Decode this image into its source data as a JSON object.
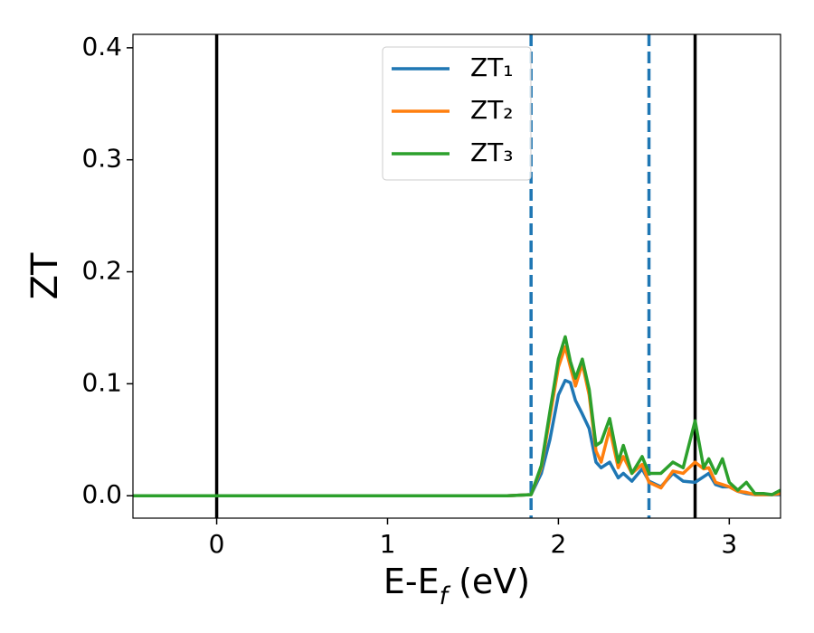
{
  "chart_data": {
    "type": "line",
    "x_label": "E-E_f (eV)",
    "y_label": "ZT",
    "x": [
      -0.49,
      0,
      1,
      1.7,
      1.84,
      1.9,
      1.95,
      2.0,
      2.04,
      2.07,
      2.1,
      2.14,
      2.18,
      2.22,
      2.25,
      2.3,
      2.35,
      2.38,
      2.43,
      2.49,
      2.53,
      2.6,
      2.67,
      2.73,
      2.8,
      2.85,
      2.88,
      2.92,
      2.96,
      3.0,
      3.05,
      3.1,
      3.15,
      3.2,
      3.25,
      3.3
    ],
    "series": [
      {
        "name": "ZT₁",
        "color": "#1f77b4",
        "values": [
          0,
          0,
          0,
          0,
          0.001,
          0.02,
          0.05,
          0.09,
          0.103,
          0.101,
          0.085,
          0.073,
          0.06,
          0.03,
          0.025,
          0.03,
          0.016,
          0.02,
          0.013,
          0.024,
          0.013,
          0.008,
          0.02,
          0.013,
          0.012,
          0.017,
          0.02,
          0.01,
          0.008,
          0.008,
          0.004,
          0.002,
          0.001,
          0.001,
          0.001,
          0.001
        ]
      },
      {
        "name": "ZT₂",
        "color": "#ff7f0e",
        "values": [
          0,
          0,
          0,
          0,
          0.001,
          0.025,
          0.07,
          0.115,
          0.133,
          0.115,
          0.098,
          0.118,
          0.09,
          0.04,
          0.03,
          0.06,
          0.025,
          0.035,
          0.02,
          0.028,
          0.012,
          0.007,
          0.022,
          0.02,
          0.03,
          0.024,
          0.025,
          0.012,
          0.01,
          0.008,
          0.004,
          0.003,
          0.001,
          0.001,
          0.001,
          0.002
        ]
      },
      {
        "name": "ZT₃",
        "color": "#2ca02c",
        "values": [
          0,
          0,
          0,
          0,
          0.001,
          0.027,
          0.075,
          0.122,
          0.142,
          0.12,
          0.105,
          0.122,
          0.095,
          0.045,
          0.048,
          0.069,
          0.03,
          0.045,
          0.02,
          0.035,
          0.02,
          0.02,
          0.03,
          0.025,
          0.067,
          0.025,
          0.033,
          0.02,
          0.033,
          0.012,
          0.005,
          0.012,
          0.002,
          0.002,
          0.001,
          0.005
        ]
      }
    ],
    "vlines": [
      {
        "x": 0,
        "color": "#000000",
        "style": "solid"
      },
      {
        "x": 2.8,
        "color": "#000000",
        "style": "solid"
      },
      {
        "x": 1.84,
        "color": "#1f77b4",
        "style": "dashed"
      },
      {
        "x": 2.53,
        "color": "#1f77b4",
        "style": "dashed"
      }
    ],
    "xlim": [
      -0.49,
      3.3
    ],
    "ylim": [
      -0.02,
      0.412
    ],
    "xticks": [
      0,
      1,
      2,
      3
    ],
    "yticks": [
      {
        "value": 0,
        "label": "0.0"
      },
      {
        "value": 0.1,
        "label": "0.1"
      },
      {
        "value": 0.2,
        "label": "0.2"
      },
      {
        "value": 0.3,
        "label": "0.3"
      },
      {
        "value": 0.4,
        "label": "0.4"
      }
    ],
    "legend": "upper center",
    "grid": false
  }
}
